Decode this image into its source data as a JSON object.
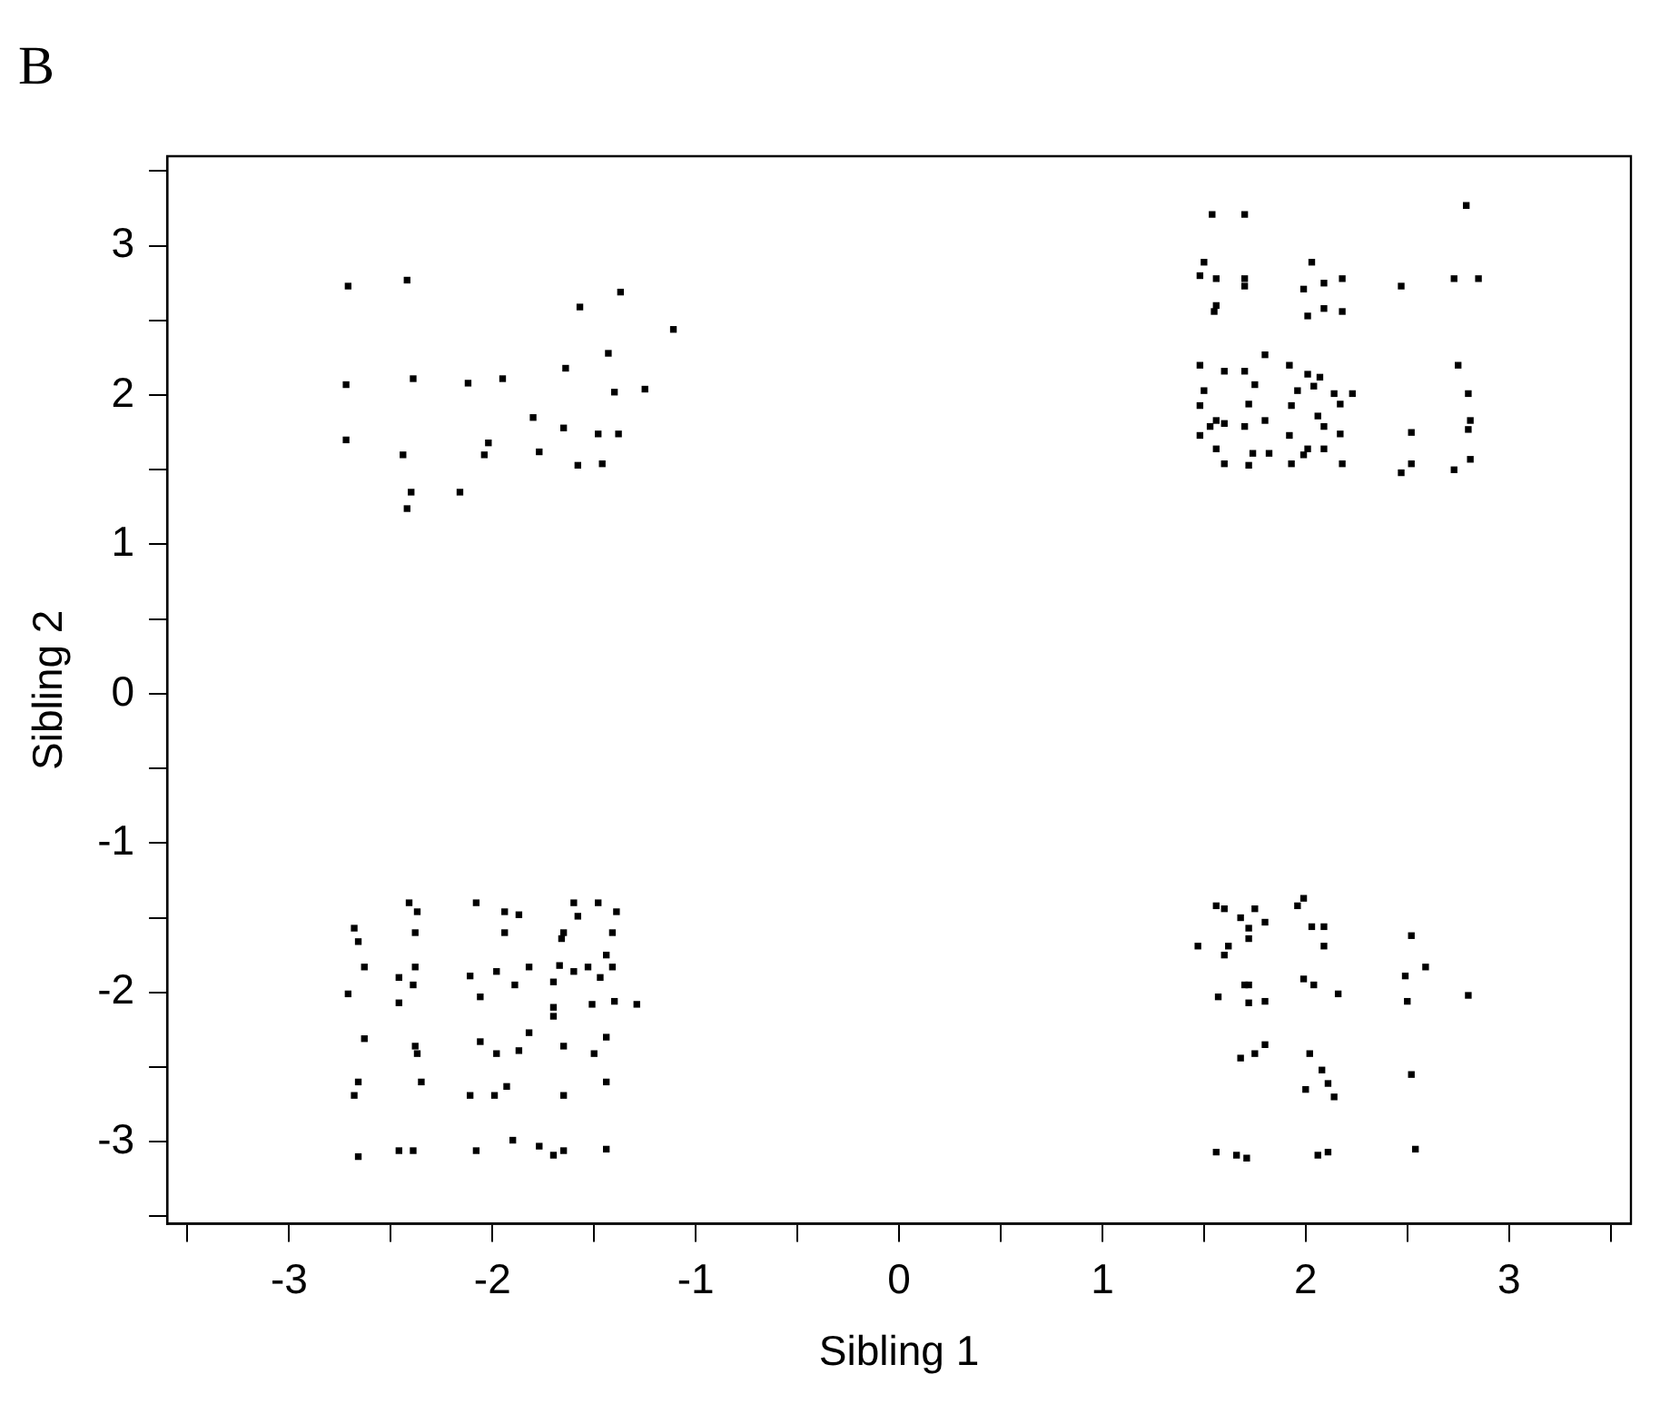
{
  "chart_data": {
    "type": "scatter",
    "title": "B",
    "xlabel": "Sibling 1",
    "ylabel": "Sibling 2",
    "marker": "square",
    "grid": false,
    "legend": false,
    "xlim": [
      -3.6,
      3.6
    ],
    "ylim": [
      -3.55,
      3.6
    ],
    "xticks": [
      {
        "value": -3.5,
        "label": null
      },
      -3,
      {
        "value": -2.5,
        "label": null
      },
      -2,
      {
        "value": -1.5,
        "label": null
      },
      -1,
      {
        "value": -0.5,
        "label": null
      },
      0,
      {
        "value": 0.5,
        "label": null
      },
      1,
      {
        "value": 1.5,
        "label": null
      },
      2,
      {
        "value": 2.5,
        "label": null
      },
      3,
      {
        "value": 3.5,
        "label": null
      }
    ],
    "yticks": [
      {
        "value": -3.5,
        "label": null
      },
      -3,
      {
        "value": -2.5,
        "label": null
      },
      -2,
      {
        "value": -1.5,
        "label": null
      },
      -1,
      {
        "value": -0.5,
        "label": null
      },
      0,
      {
        "value": 0.5,
        "label": null
      },
      1,
      {
        "value": 1.5,
        "label": null
      },
      2,
      {
        "value": 2.5,
        "label": null
      },
      3,
      {
        "value": 3.5,
        "label": null
      }
    ],
    "series": [
      {
        "color": "#000000",
        "x": [
          -2.71,
          -2.42,
          -1.57,
          -1.37,
          -1.11,
          -1.43,
          -1.64,
          -2.72,
          -2.39,
          -2.12,
          -1.95,
          -1.4,
          -1.25,
          -1.8,
          -1.65,
          -1.48,
          -1.38,
          -2.72,
          -2.44,
          -2.02,
          -2.04,
          -1.77,
          -1.58,
          -1.46,
          -2.4,
          -2.42,
          -2.16,
          1.54,
          1.7,
          2.79,
          1.5,
          1.48,
          1.56,
          1.7,
          1.7,
          2.03,
          1.99,
          2.09,
          2.18,
          2.47,
          2.73,
          2.85,
          1.55,
          1.56,
          2.01,
          2.09,
          2.18,
          1.8,
          1.48,
          1.6,
          1.7,
          1.92,
          2.01,
          2.07,
          1.75,
          1.96,
          2.04,
          2.14,
          2.23,
          2.75,
          2.8,
          1.5,
          1.48,
          1.56,
          1.53,
          1.6,
          1.72,
          1.93,
          2.06,
          2.17,
          2.09,
          1.8,
          1.7,
          1.48,
          1.56,
          1.92,
          2.01,
          2.17,
          2.81,
          2.8,
          2.52,
          1.6,
          1.72,
          1.74,
          1.82,
          1.93,
          1.99,
          2.09,
          2.18,
          2.47,
          2.52,
          2.73,
          2.81,
          -2.41,
          -2.37,
          -2.08,
          -1.94,
          -1.87,
          -1.6,
          -1.58,
          -1.48,
          -1.39,
          -2.68,
          -2.66,
          -2.38,
          -1.94,
          -1.65,
          -1.41,
          -1.66,
          -1.44,
          -2.63,
          -2.46,
          -2.38,
          -2.39,
          -2.11,
          -1.98,
          -1.89,
          -1.82,
          -1.67,
          -1.7,
          -1.6,
          -1.53,
          -1.47,
          -1.41,
          -2.71,
          -2.46,
          -2.06,
          -1.7,
          -1.7,
          -1.51,
          -1.4,
          -1.29,
          -2.63,
          -2.38,
          -2.37,
          -2.06,
          -1.98,
          -1.87,
          -1.82,
          -1.65,
          -1.5,
          -1.44,
          -2.66,
          -2.68,
          -2.35,
          -2.11,
          -1.99,
          -1.93,
          -1.65,
          -1.44,
          -2.66,
          -2.46,
          -2.39,
          -2.08,
          -1.9,
          -1.77,
          -1.7,
          -1.65,
          -1.44,
          1.56,
          1.6,
          1.75,
          1.68,
          1.8,
          1.72,
          1.72,
          1.96,
          1.99,
          2.03,
          2.09,
          2.09,
          1.47,
          1.6,
          1.62,
          2.52,
          2.49,
          2.59,
          2.5,
          2.8,
          1.7,
          1.72,
          1.57,
          1.72,
          1.8,
          1.99,
          2.04,
          2.16,
          1.68,
          1.75,
          1.8,
          2.02,
          2.08,
          2.11,
          2.14,
          2.0,
          2.52,
          1.56,
          1.66,
          1.71,
          2.06,
          2.11,
          2.54
        ],
        "values": [
          2.73,
          2.77,
          2.59,
          2.69,
          2.44,
          2.28,
          2.18,
          2.07,
          2.11,
          2.08,
          2.11,
          2.02,
          2.04,
          1.85,
          1.78,
          1.74,
          1.74,
          1.7,
          1.6,
          1.68,
          1.6,
          1.62,
          1.53,
          1.54,
          1.35,
          1.24,
          1.35,
          3.21,
          3.21,
          3.27,
          2.89,
          2.8,
          2.78,
          2.78,
          2.73,
          2.89,
          2.71,
          2.75,
          2.78,
          2.73,
          2.78,
          2.78,
          2.56,
          2.6,
          2.53,
          2.58,
          2.56,
          2.27,
          2.2,
          2.16,
          2.16,
          2.2,
          2.14,
          2.12,
          2.07,
          2.03,
          2.06,
          2.01,
          2.01,
          2.2,
          2.01,
          2.03,
          1.93,
          1.83,
          1.79,
          1.81,
          1.94,
          1.93,
          1.86,
          1.94,
          1.79,
          1.83,
          1.79,
          1.73,
          1.64,
          1.73,
          1.64,
          1.74,
          1.83,
          1.77,
          1.75,
          1.54,
          1.53,
          1.61,
          1.61,
          1.54,
          1.6,
          1.64,
          1.54,
          1.48,
          1.54,
          1.5,
          1.57,
          -1.4,
          -1.46,
          -1.4,
          -1.46,
          -1.48,
          -1.4,
          -1.49,
          -1.4,
          -1.46,
          -1.57,
          -1.66,
          -1.6,
          -1.6,
          -1.6,
          -1.6,
          -1.64,
          -1.75,
          -1.83,
          -1.9,
          -1.83,
          -1.95,
          -1.89,
          -1.86,
          -1.95,
          -1.83,
          -1.82,
          -1.93,
          -1.86,
          -1.83,
          -1.9,
          -1.83,
          -2.01,
          -2.07,
          -2.03,
          -2.1,
          -2.16,
          -2.08,
          -2.06,
          -2.08,
          -2.31,
          -2.36,
          -2.41,
          -2.33,
          -2.41,
          -2.39,
          -2.27,
          -2.36,
          -2.41,
          -2.3,
          -2.6,
          -2.69,
          -2.6,
          -2.69,
          -2.69,
          -2.63,
          -2.69,
          -2.6,
          -3.1,
          -3.06,
          -3.06,
          -3.06,
          -2.99,
          -3.03,
          -3.09,
          -3.06,
          -3.05,
          -1.42,
          -1.44,
          -1.44,
          -1.5,
          -1.53,
          -1.57,
          -1.64,
          -1.42,
          -1.37,
          -1.56,
          -1.56,
          -1.69,
          -1.69,
          -1.75,
          -1.69,
          -1.62,
          -1.89,
          -1.83,
          -2.06,
          -2.02,
          -1.95,
          -1.95,
          -2.03,
          -2.07,
          -2.06,
          -1.91,
          -1.95,
          -2.01,
          -2.44,
          -2.41,
          -2.35,
          -2.41,
          -2.52,
          -2.61,
          -2.7,
          -2.65,
          -2.55,
          -3.07,
          -3.09,
          -3.11,
          -3.09,
          -3.07,
          -3.05
        ]
      }
    ]
  }
}
